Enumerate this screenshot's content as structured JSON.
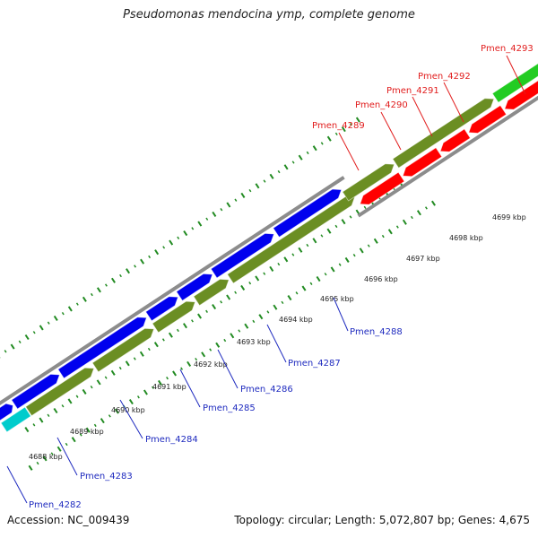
{
  "title": "Pseudomonas mendocina ymp, complete genome",
  "footer": {
    "accession": "Accession: NC_009439",
    "topology": "Topology: circular; Length: 5,072,807 bp; Genes: 4,675"
  },
  "colors": {
    "forward_gene": "#0000ee",
    "reverse_gene": "#ff0000",
    "cds_track": "#6b8e23",
    "rna_green": "#22cc22",
    "cyan_feature": "#00cccc",
    "backbone": "#9a9a9a",
    "tick": "#228b22",
    "forward_label": "#1f2bbf",
    "reverse_label": "#e11d1d"
  },
  "kbp_labels": [
    "4688 kbp",
    "4689 kbp",
    "4690 kbp",
    "4691 kbp",
    "4692 kbp",
    "4693 kbp",
    "4694 kbp",
    "4695 kbp",
    "4696 kbp",
    "4697 kbp",
    "4698 kbp",
    "4699 kbp"
  ],
  "forward_labels": [
    "Pmen_4282",
    "Pmen_4283",
    "Pmen_4284",
    "Pmen_4285",
    "Pmen_4286",
    "Pmen_4287",
    "Pmen_4288"
  ],
  "reverse_labels": [
    "Pmen_4289",
    "Pmen_4290",
    "Pmen_4291",
    "Pmen_4292",
    "Pmen_4293"
  ]
}
